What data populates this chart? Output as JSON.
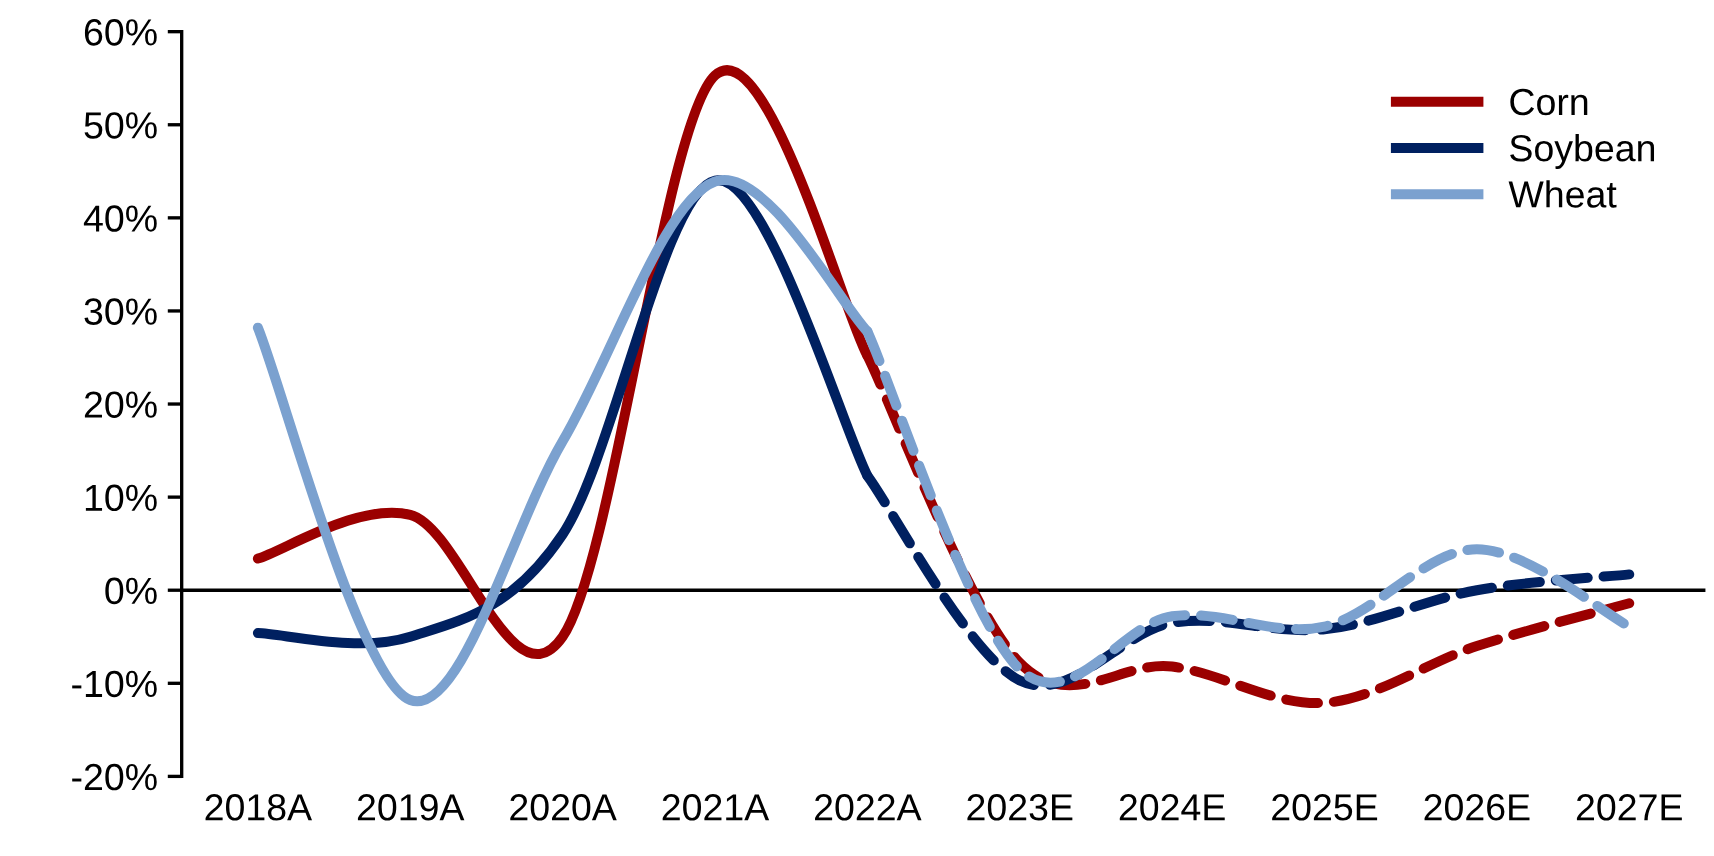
{
  "chart_data": {
    "type": "line",
    "categories": [
      "2018A",
      "2019A",
      "2020A",
      "2021A",
      "2022A",
      "2023E",
      "2024E",
      "2025E",
      "2026E",
      "2027E"
    ],
    "series": [
      {
        "name": "Corn",
        "color": "#9b0000",
        "line_style": "solid",
        "values": [
          3.4,
          8.1,
          -5,
          55.3,
          25.2,
          null,
          null,
          null,
          null,
          null
        ]
      },
      {
        "name": "Soybean",
        "color": "#002060",
        "line_style": "solid",
        "values": [
          -4.6,
          -5,
          6,
          44,
          12.3,
          null,
          null,
          null,
          null,
          null
        ]
      },
      {
        "name": "Wheat",
        "color": "#7ba1cf",
        "line_style": "solid",
        "values": [
          28.2,
          -11.8,
          16,
          43.9,
          27.8,
          null,
          null,
          null,
          null,
          null
        ]
      },
      {
        "color": "#9b0000",
        "line_style": "dashed",
        "values": [
          null,
          null,
          null,
          null,
          25.2,
          -7.8,
          -8.2,
          -12.1,
          -6,
          -1.4
        ]
      },
      {
        "color": "#002060",
        "line_style": "dashed",
        "values": [
          null,
          null,
          null,
          null,
          12.3,
          -9.7,
          -3.5,
          -4.2,
          0,
          1.7
        ]
      },
      {
        "color": "#7ba1cf",
        "line_style": "dashed",
        "values": [
          null,
          null,
          null,
          null,
          27.8,
          -8.5,
          -2.8,
          -3.9,
          4.4,
          -3.9
        ]
      }
    ],
    "ylim": [
      -20,
      60
    ],
    "yticks": [
      {
        "value": -20,
        "label": "-20%"
      },
      {
        "value": -10,
        "label": "-10%"
      },
      {
        "value": 0,
        "label": "0%"
      },
      {
        "value": 10,
        "label": "10%"
      },
      {
        "value": 20,
        "label": "20%"
      },
      {
        "value": 30,
        "label": "30%"
      },
      {
        "value": 40,
        "label": "40%"
      },
      {
        "value": 50,
        "label": "50%"
      },
      {
        "value": 60,
        "label": "60%"
      }
    ],
    "ref_lines": [
      {
        "axis": "y",
        "value": 0,
        "color": "#000000"
      }
    ],
    "grid": false,
    "legend": "top right",
    "marker": "none"
  }
}
